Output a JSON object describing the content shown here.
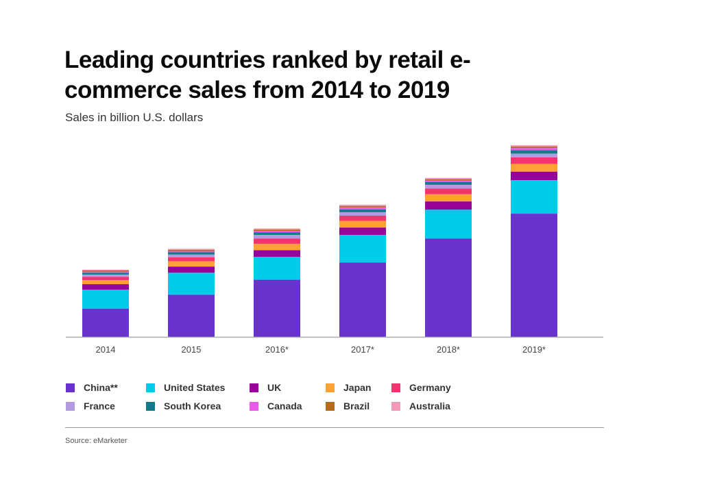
{
  "chart_data": {
    "type": "bar",
    "stacked": true,
    "title": "Leading countries ranked by retail e-commerce sales from 2014 to 2019",
    "subtitle": "Sales in billion U.S. dollars",
    "xlabel": "",
    "ylabel": "Sales in billion U.S. dollars",
    "ylim": [
      0,
      3000
    ],
    "grid": false,
    "legend_position": "bottom",
    "categories": [
      "2014",
      "2015",
      "2016*",
      "2017*",
      "2018*",
      "2019*"
    ],
    "series": [
      {
        "name": "China**",
        "color": "#6733CC",
        "values": [
          426,
          636,
          860,
          1120,
          1480,
          1855
        ]
      },
      {
        "name": "United States",
        "color": "#00CCEA",
        "values": [
          285,
          330,
          345,
          415,
          435,
          505
        ]
      },
      {
        "name": "UK",
        "color": "#990099",
        "values": [
          82,
          93,
          100,
          112,
          125,
          128
        ]
      },
      {
        "name": "Japan",
        "color": "#FFA233",
        "values": [
          62,
          80,
          95,
          100,
          108,
          116
        ]
      },
      {
        "name": "Germany",
        "color": "#F5336F",
        "values": [
          50,
          60,
          80,
          78,
          87,
          100
        ]
      },
      {
        "name": "France",
        "color": "#B39BE3",
        "values": [
          33,
          40,
          55,
          52,
          55,
          55
        ]
      },
      {
        "name": "South Korea",
        "color": "#127A8A",
        "values": [
          28,
          35,
          38,
          42,
          40,
          52
        ]
      },
      {
        "name": "Canada",
        "color": "#E85AE8",
        "values": [
          18,
          20,
          25,
          32,
          25,
          32
        ]
      },
      {
        "name": "Brazil",
        "color": "#B86B1A",
        "values": [
          16,
          17,
          18,
          20,
          20,
          22
        ]
      },
      {
        "name": "Australia",
        "color": "#F299B5",
        "values": [
          12,
          14,
          16,
          18,
          18,
          20
        ]
      }
    ]
  },
  "header": {
    "title": "Leading countries ranked by retail e-commerce sales from 2014 to 2019",
    "subtitle": "Sales in billion U.S. dollars"
  },
  "legend": {
    "items": [
      {
        "label": "China**",
        "color": "#6733CC"
      },
      {
        "label": "United States",
        "color": "#00CCEA"
      },
      {
        "label": "UK",
        "color": "#990099"
      },
      {
        "label": "Japan",
        "color": "#FFA233"
      },
      {
        "label": "Germany",
        "color": "#F5336F"
      },
      {
        "label": "France",
        "color": "#B39BE3"
      },
      {
        "label": "South Korea",
        "color": "#127A8A"
      },
      {
        "label": "Canada",
        "color": "#E85AE8"
      },
      {
        "label": "Brazil",
        "color": "#B86B1A"
      },
      {
        "label": "Australia",
        "color": "#F299B5"
      }
    ]
  },
  "footer": {
    "source": "Source: eMarketer"
  }
}
